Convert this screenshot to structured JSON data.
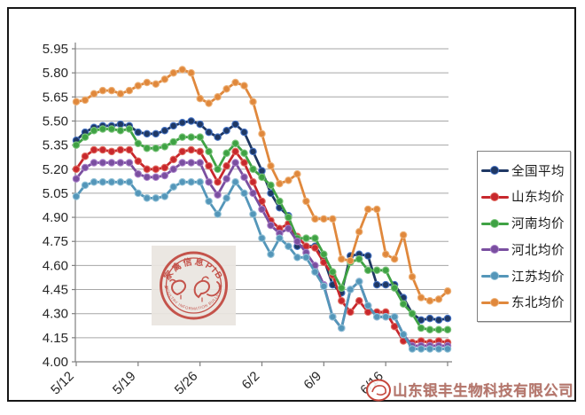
{
  "chart_data": {
    "type": "line",
    "title": "",
    "xlabel": "",
    "ylabel": "",
    "grid": true,
    "legend_position": "right",
    "ylim": [
      4.0,
      5.95
    ],
    "ytick_step": 0.15,
    "yticks": [
      "5.95",
      "5.80",
      "5.65",
      "5.50",
      "5.35",
      "5.20",
      "5.05",
      "4.90",
      "4.75",
      "4.60",
      "4.45",
      "4.30",
      "4.15",
      "4.00"
    ],
    "xticks": [
      {
        "i": 0,
        "label": "5/12"
      },
      {
        "i": 7,
        "label": "5/19"
      },
      {
        "i": 14,
        "label": "5/26"
      },
      {
        "i": 21,
        "label": "6/2"
      },
      {
        "i": 28,
        "label": "6/9"
      },
      {
        "i": 35,
        "label": "6/16"
      },
      {
        "i": 42,
        "label": ""
      }
    ],
    "x": [
      "5/12",
      "5/13",
      "5/14",
      "5/15",
      "5/16",
      "5/17",
      "5/18",
      "5/19",
      "5/20",
      "5/21",
      "5/22",
      "5/23",
      "5/24",
      "5/25",
      "5/26",
      "5/27",
      "5/28",
      "5/29",
      "5/30",
      "5/31",
      "6/1",
      "6/2",
      "6/3",
      "6/4",
      "6/5",
      "6/6",
      "6/7",
      "6/8",
      "6/9",
      "6/10",
      "6/11",
      "6/12",
      "6/13",
      "6/14",
      "6/15",
      "6/16",
      "6/17",
      "6/18",
      "6/19",
      "6/20",
      "6/21",
      "6/22",
      "6/23"
    ],
    "series": [
      {
        "name": "全国平均",
        "color": "#1F3864",
        "ring": "#4472C4",
        "values": [
          5.38,
          5.43,
          5.46,
          5.47,
          5.47,
          5.48,
          5.47,
          5.43,
          5.42,
          5.42,
          5.44,
          5.47,
          5.49,
          5.5,
          5.48,
          5.43,
          5.4,
          5.44,
          5.48,
          5.43,
          5.31,
          5.19,
          5.05,
          4.96,
          4.91,
          4.72,
          4.72,
          4.72,
          4.64,
          4.48,
          4.43,
          4.66,
          4.67,
          4.66,
          4.48,
          4.48,
          4.48,
          4.4,
          4.3,
          4.26,
          4.27,
          4.26,
          4.27
        ]
      },
      {
        "name": "山东均价",
        "color": "#C8282D",
        "ring": "#E06A5F",
        "values": [
          5.2,
          5.28,
          5.32,
          5.32,
          5.31,
          5.32,
          5.32,
          5.25,
          5.2,
          5.2,
          5.21,
          5.26,
          5.31,
          5.32,
          5.31,
          5.22,
          5.12,
          5.22,
          5.31,
          5.24,
          5.12,
          5.0,
          4.88,
          4.83,
          4.86,
          4.78,
          4.72,
          4.71,
          4.62,
          4.54,
          4.38,
          4.31,
          4.38,
          4.31,
          4.31,
          4.31,
          4.22,
          4.13,
          4.12,
          4.13,
          4.12,
          4.13,
          4.12
        ]
      },
      {
        "name": "河南均价",
        "color": "#3FA244",
        "ring": "#7CC47C",
        "values": [
          5.35,
          5.4,
          5.44,
          5.45,
          5.45,
          5.44,
          5.45,
          5.36,
          5.33,
          5.33,
          5.34,
          5.37,
          5.4,
          5.4,
          5.4,
          5.31,
          5.2,
          5.3,
          5.36,
          5.3,
          5.2,
          5.15,
          5.1,
          5.0,
          4.9,
          4.77,
          4.77,
          4.77,
          4.67,
          4.56,
          4.46,
          4.62,
          4.64,
          4.57,
          4.57,
          4.57,
          4.46,
          4.36,
          4.3,
          4.21,
          4.2,
          4.2,
          4.2
        ]
      },
      {
        "name": "河北均价",
        "color": "#7A4FA0",
        "ring": "#A97FC9",
        "values": [
          5.14,
          5.21,
          5.24,
          5.24,
          5.24,
          5.24,
          5.24,
          5.17,
          5.15,
          5.15,
          5.16,
          5.2,
          5.24,
          5.24,
          5.24,
          5.12,
          5.04,
          5.14,
          5.24,
          5.15,
          5.05,
          4.95,
          4.85,
          4.8,
          4.83,
          4.75,
          4.68,
          4.6,
          4.48,
          4.28,
          4.21,
          4.45,
          4.5,
          4.35,
          4.28,
          4.28,
          4.28,
          4.17,
          4.1,
          4.1,
          4.1,
          4.1,
          4.1
        ]
      },
      {
        "name": "江苏均价",
        "color": "#5496B9",
        "ring": "#8FC0D6",
        "values": [
          5.03,
          5.1,
          5.12,
          5.12,
          5.12,
          5.12,
          5.12,
          5.05,
          5.02,
          5.02,
          5.03,
          5.09,
          5.12,
          5.12,
          5.12,
          5.0,
          4.92,
          5.02,
          5.12,
          5.05,
          4.92,
          4.77,
          4.67,
          4.77,
          4.72,
          4.65,
          4.65,
          4.56,
          4.47,
          4.28,
          4.21,
          4.45,
          4.5,
          4.35,
          4.28,
          4.28,
          4.28,
          4.17,
          4.08,
          4.08,
          4.08,
          4.08,
          4.08
        ]
      },
      {
        "name": "东北均价",
        "color": "#E0883C",
        "ring": "#EDB279",
        "values": [
          5.62,
          5.63,
          5.67,
          5.69,
          5.69,
          5.67,
          5.69,
          5.72,
          5.74,
          5.73,
          5.76,
          5.8,
          5.82,
          5.8,
          5.64,
          5.61,
          5.65,
          5.7,
          5.74,
          5.72,
          5.62,
          5.42,
          5.22,
          5.11,
          5.13,
          5.17,
          5.0,
          4.89,
          4.89,
          4.89,
          4.64,
          4.63,
          4.81,
          4.95,
          4.95,
          4.67,
          4.64,
          4.79,
          4.53,
          4.4,
          4.38,
          4.39,
          4.44
        ]
      }
    ]
  },
  "watermark": {
    "arc_top": "家禽信息PIB",
    "arc_bottom": "POULTRY INFORMATION BULLETIN",
    "star": "★",
    "color": "#BE3A31"
  },
  "footer": {
    "company": "山东银丰生物科技有限公司",
    "color": "#B5766C",
    "logo_color": "#C5473C"
  }
}
